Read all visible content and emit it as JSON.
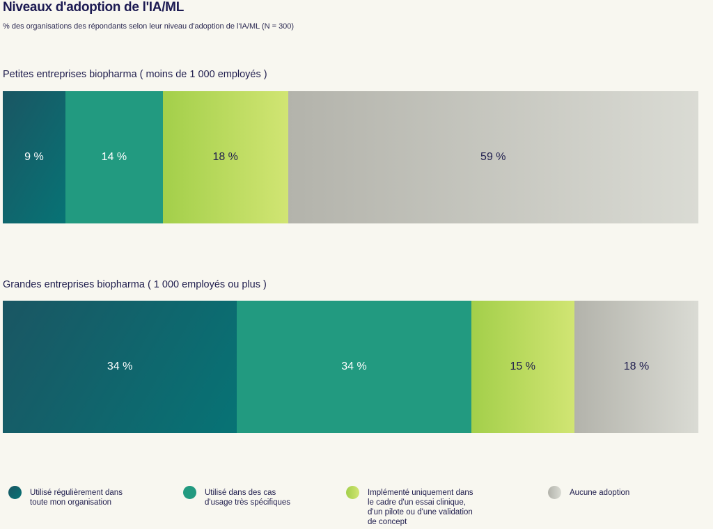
{
  "chart_data": {
    "type": "bar",
    "orientation": "horizontal-stacked-100",
    "title": "Niveaux d'adoption de l'IA/ML",
    "subtitle": "% des organisations des répondants selon leur niveau d'adoption de l'IA/ML (N = 300)",
    "legend_placement": "bottom",
    "series": [
      {
        "name": "Utilisé régulièrement dans\ntoute mon organisation",
        "color": "#077375"
      },
      {
        "name": "Utilisé dans des cas\nd'usage très spécifiques",
        "color": "#229a80"
      },
      {
        "name": "Implémenté uniquement dans\nle cadre d'un essai clinique,\nd'un pilote ou d'une validation\nde concept",
        "color": "#b9da5b"
      },
      {
        "name": "Aucune adoption",
        "color": "#c8c8c0"
      }
    ],
    "groups": [
      {
        "label": "Petites entreprises biopharma ( moins de 1 000 employés )",
        "values": [
          9,
          14,
          18,
          59
        ],
        "labels": [
          "9 %",
          "14 %",
          "18 %",
          "59 %"
        ]
      },
      {
        "label": "Grandes entreprises biopharma ( 1 000 employés ou plus )",
        "values": [
          34,
          34,
          15,
          18
        ],
        "labels": [
          "34 %",
          "34 %",
          "15 %",
          "18 %"
        ]
      }
    ]
  }
}
